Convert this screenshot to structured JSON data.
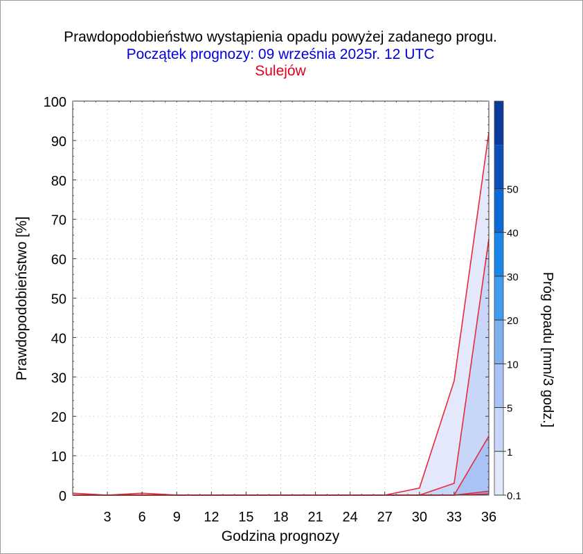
{
  "header": {
    "title": "Prawdopodobieństwo wystąpienia opadu powyżej zadanego progu.",
    "subtitle": "Początek prognozy: 09 września 2025r. 12 UTC",
    "station": "Sulejów"
  },
  "colors": {
    "subtitle": "#0000dd",
    "station": "#e0001b",
    "line": "#e8283a",
    "grid": "#b8b8b8",
    "colorbar": [
      "#e3e8fb",
      "#c8d6f7",
      "#a9c4f4",
      "#7fb0ee",
      "#3f9cf0",
      "#1a86ea",
      "#0b6ad6",
      "#0b50b8",
      "#0a3b9a"
    ]
  },
  "chart_data": {
    "type": "area",
    "xlabel": "Godzina prognozy",
    "ylabel": "Prawdopodobieństwo [%]",
    "x": [
      0,
      3,
      6,
      9,
      12,
      15,
      18,
      21,
      24,
      27,
      30,
      33,
      36
    ],
    "x_ticks": [
      "3",
      "6",
      "9",
      "12",
      "15",
      "18",
      "21",
      "24",
      "27",
      "30",
      "33",
      "36"
    ],
    "xlim": [
      0,
      36
    ],
    "y_ticks": [
      "0",
      "10",
      "20",
      "30",
      "40",
      "50",
      "60",
      "70",
      "80",
      "90",
      "100"
    ],
    "ylim": [
      0,
      100
    ],
    "grid": true,
    "series": [
      {
        "name": "0.1",
        "values": [
          0.5,
          0,
          0.5,
          0,
          0,
          0,
          0,
          0,
          0,
          0,
          1.8,
          29,
          92
        ]
      },
      {
        "name": "1",
        "values": [
          0,
          0,
          0,
          0,
          0,
          0,
          0,
          0,
          0,
          0,
          0,
          3,
          65
        ]
      },
      {
        "name": "5",
        "values": [
          0,
          0,
          0,
          0,
          0,
          0,
          0,
          0,
          0,
          0,
          0,
          0,
          15
        ]
      },
      {
        "name": "10",
        "values": [
          0,
          0,
          0,
          0,
          0,
          0,
          0,
          0,
          0,
          0,
          0,
          0,
          1
        ]
      },
      {
        "name": "20",
        "values": [
          0,
          0,
          0,
          0,
          0,
          0,
          0,
          0,
          0,
          0,
          0,
          0,
          0.3
        ]
      }
    ],
    "colorbar": {
      "label": "Próg opadu [mm/3 godz.]",
      "levels": [
        0.1,
        1,
        5,
        10,
        20,
        30,
        40,
        50,
        60
      ],
      "tick_labels": [
        "0.1",
        "1",
        "5",
        "10",
        "20",
        "30",
        "40",
        "50"
      ]
    }
  }
}
